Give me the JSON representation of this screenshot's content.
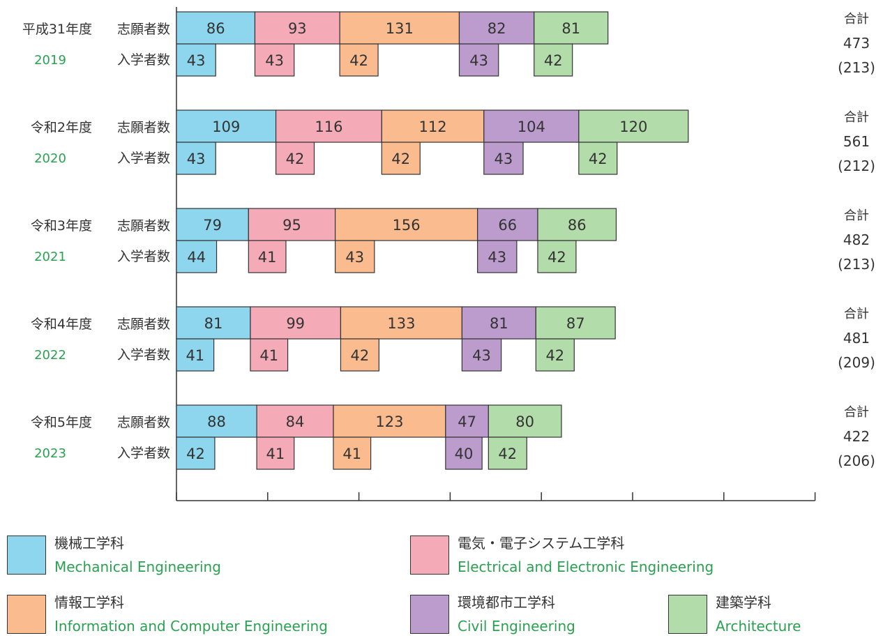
{
  "chart_data": {
    "type": "bar",
    "orientation": "horizontal-stacked",
    "xlim": [
      0,
      700
    ],
    "x_ticks": [
      "0",
      "100",
      "200",
      "300",
      "400",
      "500",
      "600",
      "700"
    ],
    "row_labels": {
      "applicants": "志願者数",
      "admitted": "入学者数"
    },
    "total_label": "合計",
    "series": [
      {
        "name": "機械工学科",
        "name_en": "Mechanical Engineering",
        "color": "#8dd6ee"
      },
      {
        "name": "電気・電子システム工学科",
        "name_en": "Electrical and Electronic Engineering",
        "color": "#f5aab8"
      },
      {
        "name": "情報工学科",
        "name_en": "Information and Computer Engineering",
        "color": "#fabb8e"
      },
      {
        "name": "環境都市工学科",
        "name_en": "Civil Engineering",
        "color": "#bb9ccc"
      },
      {
        "name": "建築学科",
        "name_en": "Architecture",
        "color": "#b3dcab"
      }
    ],
    "years": [
      {
        "label": "平成31年度",
        "year": "2019",
        "applicants": [
          86,
          93,
          131,
          82,
          81
        ],
        "admitted": [
          43,
          43,
          42,
          43,
          42
        ],
        "total": "473",
        "total_admitted": "(213)"
      },
      {
        "label": "令和2年度",
        "year": "2020",
        "applicants": [
          109,
          116,
          112,
          104,
          120
        ],
        "admitted": [
          43,
          42,
          42,
          43,
          42
        ],
        "total": "561",
        "total_admitted": "(212)"
      },
      {
        "label": "令和3年度",
        "year": "2021",
        "applicants": [
          79,
          95,
          156,
          66,
          86
        ],
        "admitted": [
          44,
          41,
          43,
          43,
          42
        ],
        "total": "482",
        "total_admitted": "(213)"
      },
      {
        "label": "令和4年度",
        "year": "2022",
        "applicants": [
          81,
          99,
          133,
          81,
          87
        ],
        "admitted": [
          41,
          41,
          42,
          43,
          42
        ],
        "total": "481",
        "total_admitted": "(209)"
      },
      {
        "label": "令和5年度",
        "year": "2023",
        "applicants": [
          88,
          84,
          123,
          47,
          80
        ],
        "admitted": [
          42,
          41,
          41,
          40,
          42
        ],
        "total": "422",
        "total_admitted": "(206)"
      }
    ]
  }
}
